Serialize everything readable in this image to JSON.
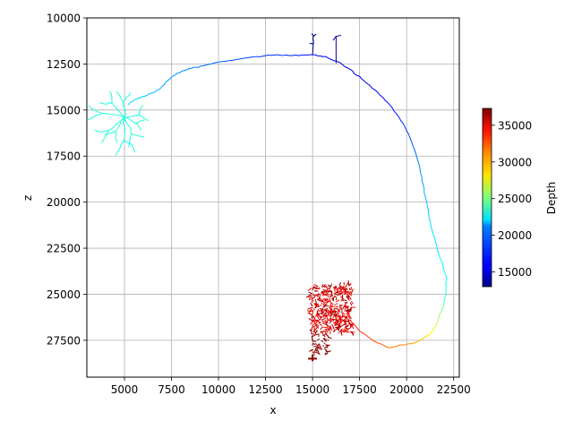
{
  "chart_data": {
    "type": "scatter",
    "title": "",
    "xlabel": "x",
    "ylabel": "z",
    "xlim": [
      3000,
      22800
    ],
    "ylim": [
      29500,
      10000
    ],
    "y_inverted": true,
    "grid": true,
    "x_ticks": [
      5000,
      7500,
      10000,
      12500,
      15000,
      17500,
      20000,
      22500
    ],
    "y_ticks": [
      10000,
      12500,
      15000,
      17500,
      20000,
      22500,
      25000,
      27500
    ],
    "colorbar": {
      "label": "Depth",
      "colormap": "jet",
      "range": [
        13000,
        37300
      ],
      "ticks": [
        15000,
        20000,
        25000,
        30000,
        35000
      ]
    },
    "series": [
      {
        "role": "main axon trace",
        "points": [
          {
            "x": 5200,
            "z": 14700,
            "depth": 21500
          },
          {
            "x": 5600,
            "z": 14400,
            "depth": 21200
          },
          {
            "x": 6200,
            "z": 14200,
            "depth": 20800
          },
          {
            "x": 6800,
            "z": 13900,
            "depth": 20400
          },
          {
            "x": 7300,
            "z": 13400,
            "depth": 20000
          },
          {
            "x": 7800,
            "z": 13000,
            "depth": 19600
          },
          {
            "x": 8500,
            "z": 12750,
            "depth": 19200
          },
          {
            "x": 9200,
            "z": 12600,
            "depth": 18800
          },
          {
            "x": 10000,
            "z": 12400,
            "depth": 18400
          },
          {
            "x": 11000,
            "z": 12250,
            "depth": 18000
          },
          {
            "x": 12000,
            "z": 12100,
            "depth": 17600
          },
          {
            "x": 12800,
            "z": 12030,
            "depth": 17300
          },
          {
            "x": 13600,
            "z": 12010,
            "depth": 17000
          },
          {
            "x": 14300,
            "z": 12050,
            "depth": 16700
          },
          {
            "x": 15000,
            "z": 12000,
            "depth": 16400
          },
          {
            "x": 15700,
            "z": 12100,
            "depth": 16000
          },
          {
            "x": 16400,
            "z": 12400,
            "depth": 15800
          },
          {
            "x": 17000,
            "z": 12800,
            "depth": 15600
          },
          {
            "x": 17600,
            "z": 13300,
            "depth": 15600
          },
          {
            "x": 18300,
            "z": 13900,
            "depth": 15800
          },
          {
            "x": 19000,
            "z": 14600,
            "depth": 16200
          },
          {
            "x": 19600,
            "z": 15400,
            "depth": 16800
          },
          {
            "x": 20100,
            "z": 16300,
            "depth": 17500
          },
          {
            "x": 20500,
            "z": 17400,
            "depth": 18500
          },
          {
            "x": 20800,
            "z": 18600,
            "depth": 19500
          },
          {
            "x": 21000,
            "z": 19700,
            "depth": 20300
          },
          {
            "x": 21200,
            "z": 20900,
            "depth": 21000
          },
          {
            "x": 21500,
            "z": 22000,
            "depth": 21500
          },
          {
            "x": 21800,
            "z": 23100,
            "depth": 22000
          },
          {
            "x": 22100,
            "z": 24000,
            "depth": 22300
          },
          {
            "x": 22100,
            "z": 25000,
            "depth": 23000
          },
          {
            "x": 21900,
            "z": 25800,
            "depth": 24500
          },
          {
            "x": 21600,
            "z": 26600,
            "depth": 26500
          },
          {
            "x": 21200,
            "z": 27200,
            "depth": 28500
          },
          {
            "x": 20500,
            "z": 27600,
            "depth": 30000
          },
          {
            "x": 19800,
            "z": 27750,
            "depth": 31000
          },
          {
            "x": 19000,
            "z": 27900,
            "depth": 31500
          },
          {
            "x": 18200,
            "z": 27500,
            "depth": 32500
          },
          {
            "x": 17500,
            "z": 27000,
            "depth": 33000
          },
          {
            "x": 17000,
            "z": 26400,
            "depth": 34000
          }
        ]
      },
      {
        "role": "upper-left arbor",
        "depth_range": [
          22000,
          24500
        ],
        "center": {
          "x": 5000,
          "z": 15500
        }
      },
      {
        "role": "top branch near x=15000",
        "depth_range": [
          13000,
          14500
        ],
        "center": {
          "x": 15200,
          "z": 11500
        }
      },
      {
        "role": "top branch near x=16300",
        "depth_range": [
          13000,
          14500
        ],
        "center": {
          "x": 16300,
          "z": 11300
        }
      },
      {
        "role": "lower arbor",
        "depth_range": [
          35000,
          37300
        ],
        "center": {
          "x": 16000,
          "z": 26000
        }
      }
    ]
  }
}
